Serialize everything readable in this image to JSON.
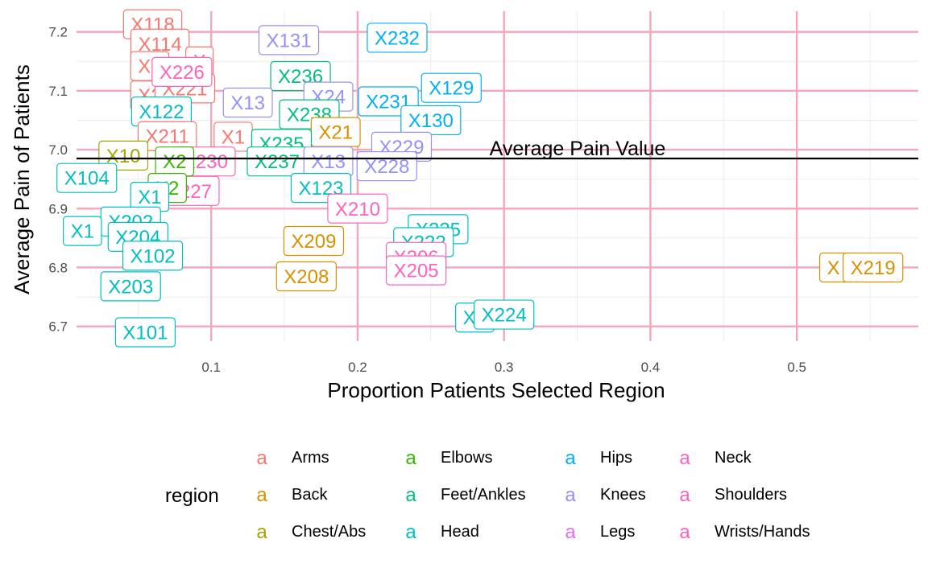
{
  "chart_data": {
    "type": "scatter",
    "title": "",
    "xlabel": "Proportion Patients Selected Region",
    "ylabel": "Average Pain of Patients",
    "xlim": [
      0.008,
      0.583
    ],
    "ylim": [
      6.675,
      7.235
    ],
    "x_ticks": [
      0.1,
      0.2,
      0.3,
      0.4,
      0.5
    ],
    "x_tick_labels": [
      "0.1",
      "0.2",
      "0.3",
      "0.4",
      "0.5"
    ],
    "y_ticks": [
      6.7,
      6.8,
      6.9,
      7.0,
      7.1,
      7.2
    ],
    "y_tick_labels": [
      "6.7",
      "6.8",
      "6.9",
      "7.0",
      "7.1",
      "7.2"
    ],
    "grid": true,
    "reference_line": {
      "y": 6.985,
      "label": "Average Pain Value"
    },
    "legend": {
      "title": "region",
      "placement": "bottom",
      "key_glyph": "a",
      "entries": [
        {
          "name": "Arms",
          "color": "#F8766D"
        },
        {
          "name": "Back",
          "color": "#D89000"
        },
        {
          "name": "Chest/Abs",
          "color": "#A3A500"
        },
        {
          "name": "Elbows",
          "color": "#39B600"
        },
        {
          "name": "Feet/Ankles",
          "color": "#00BF7D"
        },
        {
          "name": "Head",
          "color": "#00BFC4"
        },
        {
          "name": "Hips",
          "color": "#00B0F6"
        },
        {
          "name": "Knees",
          "color": "#9590FF"
        },
        {
          "name": "Legs",
          "color": "#E76BF3"
        },
        {
          "name": "Neck",
          "color": "#FF62BC"
        },
        {
          "name": "Shoulders",
          "color": "#FF62BC"
        },
        {
          "name": "Wrists/Hands",
          "color": "#FF62BC"
        }
      ]
    },
    "points": [
      {
        "label": "X118",
        "region": "Arms",
        "x": 0.06,
        "y": 7.213
      },
      {
        "label": "X114",
        "region": "Arms",
        "x": 0.065,
        "y": 7.18
      },
      {
        "label": "X2",
        "region": "Arms",
        "x": 0.058,
        "y": 7.142
      },
      {
        "label": "X",
        "region": "Arms",
        "x": 0.092,
        "y": 7.15
      },
      {
        "label": "X2",
        "region": "Arms",
        "x": 0.058,
        "y": 7.092
      },
      {
        "label": "X221",
        "region": "Arms",
        "x": 0.082,
        "y": 7.104
      },
      {
        "label": "X122",
        "region": "Head",
        "x": 0.066,
        "y": 7.065
      },
      {
        "label": "X211",
        "region": "Arms",
        "x": 0.07,
        "y": 7.023
      },
      {
        "label": "X1",
        "region": "Arms",
        "x": 0.115,
        "y": 7.022
      },
      {
        "label": "X226",
        "region": "Wrists/Hands",
        "x": 0.08,
        "y": 7.132
      },
      {
        "label": "X131",
        "region": "Knees",
        "x": 0.153,
        "y": 7.186
      },
      {
        "label": "X232",
        "region": "Hips",
        "x": 0.227,
        "y": 7.19
      },
      {
        "label": "X236",
        "region": "Feet/Ankles",
        "x": 0.161,
        "y": 7.125
      },
      {
        "label": "X13",
        "region": "Knees",
        "x": 0.125,
        "y": 7.08
      },
      {
        "label": "X24",
        "region": "Knees",
        "x": 0.18,
        "y": 7.09
      },
      {
        "label": "X238",
        "region": "Feet/Ankles",
        "x": 0.167,
        "y": 7.06
      },
      {
        "label": "X129",
        "region": "Hips",
        "x": 0.264,
        "y": 7.105
      },
      {
        "label": "X231",
        "region": "Hips",
        "x": 0.221,
        "y": 7.082
      },
      {
        "label": "X130",
        "region": "Hips",
        "x": 0.25,
        "y": 7.05
      },
      {
        "label": "X21",
        "region": "Back",
        "x": 0.185,
        "y": 7.03
      },
      {
        "label": "X229",
        "region": "Knees",
        "x": 0.23,
        "y": 7.005
      },
      {
        "label": "X228",
        "region": "Knees",
        "x": 0.22,
        "y": 6.972
      },
      {
        "label": "X235",
        "region": "Feet/Ankles",
        "x": 0.148,
        "y": 7.01
      },
      {
        "label": "X237",
        "region": "Feet/Ankles",
        "x": 0.145,
        "y": 6.98
      },
      {
        "label": "X230",
        "region": "Wrists/Hands",
        "x": 0.096,
        "y": 6.98
      },
      {
        "label": "X227",
        "region": "Wrists/Hands",
        "x": 0.085,
        "y": 6.93
      },
      {
        "label": "X10",
        "region": "Chest/Abs",
        "x": 0.04,
        "y": 6.99
      },
      {
        "label": "X2",
        "region": "Elbows",
        "x": 0.075,
        "y": 6.98
      },
      {
        "label": "X2",
        "region": "Elbows",
        "x": 0.07,
        "y": 6.935
      },
      {
        "label": "X104",
        "region": "Head",
        "x": 0.015,
        "y": 6.952
      },
      {
        "label": "X1",
        "region": "Head",
        "x": 0.058,
        "y": 6.92
      },
      {
        "label": "X13",
        "region": "Knees",
        "x": 0.18,
        "y": 6.98
      },
      {
        "label": "X123",
        "region": "Head",
        "x": 0.175,
        "y": 6.935
      },
      {
        "label": "X210",
        "region": "Wrists/Hands",
        "x": 0.2,
        "y": 6.9
      },
      {
        "label": "X209",
        "region": "Back",
        "x": 0.17,
        "y": 6.845
      },
      {
        "label": "X208",
        "region": "Back",
        "x": 0.165,
        "y": 6.785
      },
      {
        "label": "X225",
        "region": "Head",
        "x": 0.255,
        "y": 6.865
      },
      {
        "label": "X222",
        "region": "Head",
        "x": 0.245,
        "y": 6.843
      },
      {
        "label": "X206",
        "region": "Neck",
        "x": 0.24,
        "y": 6.818
      },
      {
        "label": "X205",
        "region": "Neck",
        "x": 0.24,
        "y": 6.795
      },
      {
        "label": "X202",
        "region": "Head",
        "x": 0.045,
        "y": 6.878
      },
      {
        "label": "X1",
        "region": "Head",
        "x": 0.012,
        "y": 6.862
      },
      {
        "label": "X204",
        "region": "Head",
        "x": 0.05,
        "y": 6.852
      },
      {
        "label": "X102",
        "region": "Head",
        "x": 0.06,
        "y": 6.82
      },
      {
        "label": "X203",
        "region": "Head",
        "x": 0.045,
        "y": 6.768
      },
      {
        "label": "X101",
        "region": "Head",
        "x": 0.055,
        "y": 6.69
      },
      {
        "label": "X2",
        "region": "Head",
        "x": 0.28,
        "y": 6.715
      },
      {
        "label": "X224",
        "region": "Head",
        "x": 0.3,
        "y": 6.72
      },
      {
        "label": "X",
        "region": "Back",
        "x": 0.525,
        "y": 6.8
      },
      {
        "label": "X219",
        "region": "Back",
        "x": 0.552,
        "y": 6.8
      }
    ]
  }
}
